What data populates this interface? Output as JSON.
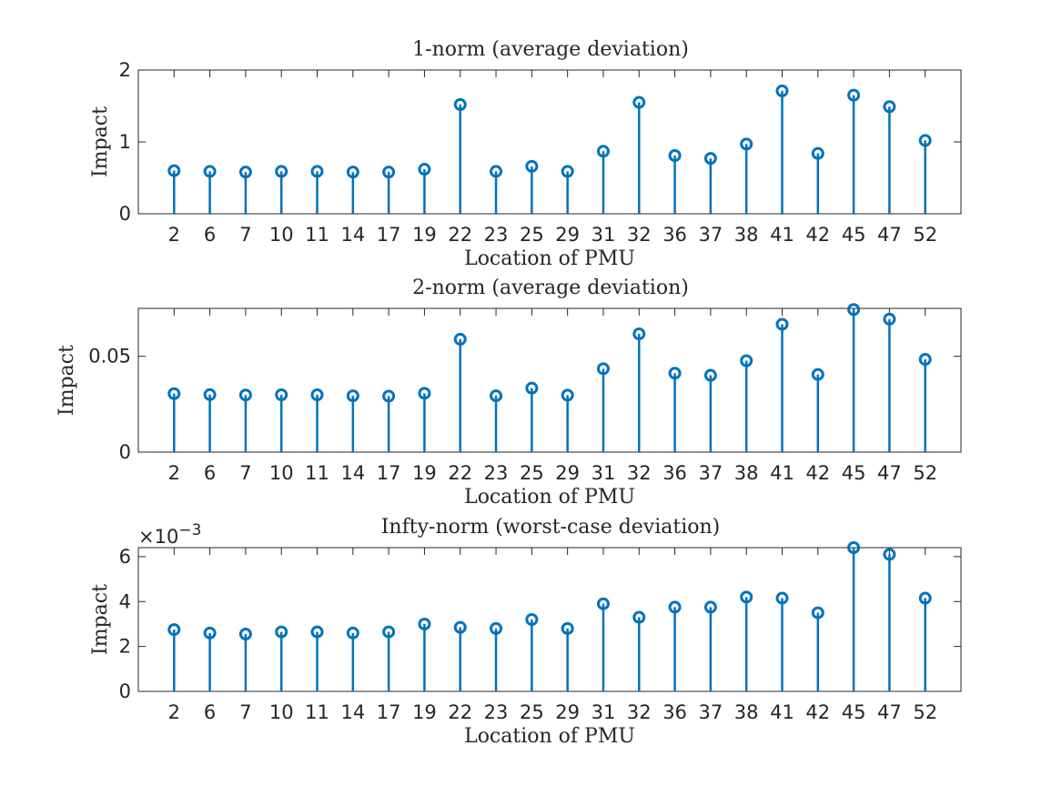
{
  "colors": {
    "series": "#0072BD",
    "axes": "#262626",
    "background": "#ffffff"
  },
  "chart_data": [
    {
      "type": "stem",
      "title": "1-norm (average deviation)",
      "xlabel": "Location of PMU",
      "ylabel": "Impact",
      "categories": [
        "2",
        "6",
        "7",
        "10",
        "11",
        "14",
        "17",
        "19",
        "22",
        "23",
        "25",
        "29",
        "31",
        "32",
        "36",
        "37",
        "38",
        "41",
        "42",
        "45",
        "47",
        "52"
      ],
      "values": [
        0.6,
        0.59,
        0.58,
        0.59,
        0.59,
        0.58,
        0.58,
        0.62,
        1.52,
        0.59,
        0.66,
        0.59,
        0.87,
        1.55,
        0.81,
        0.77,
        0.97,
        1.71,
        0.84,
        1.65,
        1.49,
        1.02
      ],
      "ylim": [
        0,
        2
      ],
      "yticks": [
        0,
        1,
        2
      ],
      "ytick_labels": [
        "0",
        "1",
        "2"
      ],
      "exponent_label": "",
      "grid": false
    },
    {
      "type": "stem",
      "title": "2-norm (average deviation)",
      "xlabel": "Location of PMU",
      "ylabel": "Impact",
      "categories": [
        "2",
        "6",
        "7",
        "10",
        "11",
        "14",
        "17",
        "19",
        "22",
        "23",
        "25",
        "29",
        "31",
        "32",
        "36",
        "37",
        "38",
        "41",
        "42",
        "45",
        "47",
        "52"
      ],
      "values": [
        0.0305,
        0.03,
        0.0298,
        0.0299,
        0.0299,
        0.0294,
        0.0292,
        0.0307,
        0.0589,
        0.0294,
        0.0334,
        0.0297,
        0.0435,
        0.0617,
        0.0412,
        0.0401,
        0.0477,
        0.0667,
        0.0405,
        0.0744,
        0.0694,
        0.0484
      ],
      "ylim": [
        0,
        0.075
      ],
      "yticks": [
        0,
        0.05
      ],
      "ytick_labels": [
        "0",
        "0.05"
      ],
      "exponent_label": "",
      "grid": false
    },
    {
      "type": "stem",
      "title": "Infty-norm (worst-case deviation)",
      "xlabel": "Location of PMU",
      "ylabel": "Impact",
      "categories": [
        "2",
        "6",
        "7",
        "10",
        "11",
        "14",
        "17",
        "19",
        "22",
        "23",
        "25",
        "29",
        "31",
        "32",
        "36",
        "37",
        "38",
        "41",
        "42",
        "45",
        "47",
        "52"
      ],
      "values": [
        2.75,
        2.6,
        2.55,
        2.65,
        2.65,
        2.6,
        2.65,
        3.0,
        2.85,
        2.8,
        3.2,
        2.8,
        3.9,
        3.3,
        3.75,
        3.75,
        4.2,
        4.15,
        3.5,
        6.4,
        6.1,
        4.15
      ],
      "ylim": [
        0,
        6.4
      ],
      "yticks": [
        0,
        2,
        4,
        6
      ],
      "ytick_labels": [
        "0",
        "2",
        "4",
        "6"
      ],
      "exponent_label": "×10",
      "exponent_power": "−3",
      "grid": false
    }
  ]
}
